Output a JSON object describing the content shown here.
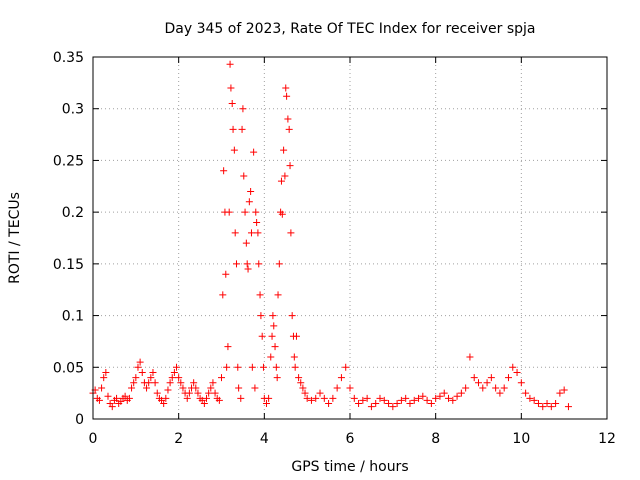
{
  "chart_data": {
    "type": "scatter",
    "title": "Day 345 of 2023, Rate Of TEC Index for receiver spja",
    "xlabel": "GPS time / hours",
    "ylabel": "ROTI / TECUs",
    "xlim": [
      0,
      12
    ],
    "ylim": [
      0,
      0.35
    ],
    "x_ticks": [
      0,
      2,
      4,
      6,
      8,
      10,
      12
    ],
    "x_tick_labels": [
      "0",
      "2",
      "4",
      "6",
      "8",
      "10",
      "12"
    ],
    "y_ticks": [
      0,
      0.05,
      0.1,
      0.15,
      0.2,
      0.25,
      0.3,
      0.35
    ],
    "y_tick_labels": [
      "0",
      "0.05",
      "0.1",
      "0.15",
      "0.2",
      "0.25",
      "0.3",
      "0.35"
    ],
    "grid": true,
    "marker": "+",
    "marker_color": "#ff0000",
    "series": [
      {
        "name": "spja",
        "points": [
          [
            0.0,
            0.025
          ],
          [
            0.05,
            0.028
          ],
          [
            0.1,
            0.02
          ],
          [
            0.15,
            0.018
          ],
          [
            0.2,
            0.03
          ],
          [
            0.25,
            0.04
          ],
          [
            0.3,
            0.045
          ],
          [
            0.35,
            0.022
          ],
          [
            0.4,
            0.015
          ],
          [
            0.45,
            0.012
          ],
          [
            0.5,
            0.018
          ],
          [
            0.55,
            0.02
          ],
          [
            0.6,
            0.015
          ],
          [
            0.65,
            0.017
          ],
          [
            0.7,
            0.02
          ],
          [
            0.75,
            0.022
          ],
          [
            0.8,
            0.018
          ],
          [
            0.85,
            0.02
          ],
          [
            0.9,
            0.03
          ],
          [
            0.95,
            0.035
          ],
          [
            1.0,
            0.04
          ],
          [
            1.05,
            0.05
          ],
          [
            1.1,
            0.055
          ],
          [
            1.15,
            0.045
          ],
          [
            1.2,
            0.035
          ],
          [
            1.25,
            0.03
          ],
          [
            1.3,
            0.035
          ],
          [
            1.35,
            0.04
          ],
          [
            1.4,
            0.045
          ],
          [
            1.45,
            0.035
          ],
          [
            1.5,
            0.025
          ],
          [
            1.55,
            0.02
          ],
          [
            1.6,
            0.018
          ],
          [
            1.65,
            0.015
          ],
          [
            1.7,
            0.02
          ],
          [
            1.75,
            0.028
          ],
          [
            1.8,
            0.035
          ],
          [
            1.85,
            0.04
          ],
          [
            1.9,
            0.045
          ],
          [
            1.95,
            0.05
          ],
          [
            2.0,
            0.04
          ],
          [
            2.05,
            0.035
          ],
          [
            2.1,
            0.03
          ],
          [
            2.15,
            0.025
          ],
          [
            2.2,
            0.02
          ],
          [
            2.25,
            0.025
          ],
          [
            2.3,
            0.03
          ],
          [
            2.35,
            0.035
          ],
          [
            2.4,
            0.03
          ],
          [
            2.45,
            0.025
          ],
          [
            2.5,
            0.02
          ],
          [
            2.55,
            0.018
          ],
          [
            2.6,
            0.015
          ],
          [
            2.65,
            0.02
          ],
          [
            2.7,
            0.025
          ],
          [
            2.75,
            0.03
          ],
          [
            2.8,
            0.035
          ],
          [
            2.85,
            0.025
          ],
          [
            2.9,
            0.02
          ],
          [
            2.95,
            0.018
          ],
          [
            3.0,
            0.04
          ],
          [
            3.03,
            0.12
          ],
          [
            3.05,
            0.24
          ],
          [
            3.08,
            0.2
          ],
          [
            3.1,
            0.14
          ],
          [
            3.12,
            0.05
          ],
          [
            3.15,
            0.07
          ],
          [
            3.18,
            0.2
          ],
          [
            3.2,
            0.343
          ],
          [
            3.22,
            0.32
          ],
          [
            3.25,
            0.305
          ],
          [
            3.27,
            0.28
          ],
          [
            3.3,
            0.26
          ],
          [
            3.32,
            0.18
          ],
          [
            3.35,
            0.15
          ],
          [
            3.38,
            0.05
          ],
          [
            3.4,
            0.03
          ],
          [
            3.45,
            0.02
          ],
          [
            3.48,
            0.28
          ],
          [
            3.5,
            0.3
          ],
          [
            3.52,
            0.235
          ],
          [
            3.55,
            0.2
          ],
          [
            3.58,
            0.17
          ],
          [
            3.6,
            0.15
          ],
          [
            3.62,
            0.145
          ],
          [
            3.65,
            0.21
          ],
          [
            3.68,
            0.22
          ],
          [
            3.7,
            0.18
          ],
          [
            3.72,
            0.05
          ],
          [
            3.75,
            0.258
          ],
          [
            3.78,
            0.03
          ],
          [
            3.8,
            0.2
          ],
          [
            3.82,
            0.19
          ],
          [
            3.85,
            0.18
          ],
          [
            3.87,
            0.15
          ],
          [
            3.9,
            0.12
          ],
          [
            3.92,
            0.1
          ],
          [
            3.95,
            0.08
          ],
          [
            3.98,
            0.05
          ],
          [
            4.0,
            0.02
          ],
          [
            4.05,
            0.015
          ],
          [
            4.1,
            0.02
          ],
          [
            4.15,
            0.06
          ],
          [
            4.18,
            0.08
          ],
          [
            4.2,
            0.1
          ],
          [
            4.22,
            0.09
          ],
          [
            4.25,
            0.07
          ],
          [
            4.28,
            0.05
          ],
          [
            4.3,
            0.04
          ],
          [
            4.32,
            0.12
          ],
          [
            4.35,
            0.15
          ],
          [
            4.38,
            0.2
          ],
          [
            4.4,
            0.23
          ],
          [
            4.42,
            0.198
          ],
          [
            4.45,
            0.26
          ],
          [
            4.48,
            0.235
          ],
          [
            4.5,
            0.32
          ],
          [
            4.52,
            0.312
          ],
          [
            4.55,
            0.29
          ],
          [
            4.58,
            0.28
          ],
          [
            4.6,
            0.245
          ],
          [
            4.62,
            0.18
          ],
          [
            4.65,
            0.1
          ],
          [
            4.68,
            0.08
          ],
          [
            4.7,
            0.06
          ],
          [
            4.72,
            0.05
          ],
          [
            4.75,
            0.08
          ],
          [
            4.8,
            0.04
          ],
          [
            4.85,
            0.035
          ],
          [
            4.9,
            0.03
          ],
          [
            4.95,
            0.025
          ],
          [
            5.0,
            0.02
          ],
          [
            5.1,
            0.018
          ],
          [
            5.2,
            0.02
          ],
          [
            5.3,
            0.025
          ],
          [
            5.4,
            0.02
          ],
          [
            5.5,
            0.015
          ],
          [
            5.6,
            0.02
          ],
          [
            5.7,
            0.03
          ],
          [
            5.8,
            0.04
          ],
          [
            5.9,
            0.05
          ],
          [
            6.0,
            0.03
          ],
          [
            6.1,
            0.02
          ],
          [
            6.2,
            0.015
          ],
          [
            6.3,
            0.018
          ],
          [
            6.4,
            0.02
          ],
          [
            6.5,
            0.012
          ],
          [
            6.6,
            0.015
          ],
          [
            6.7,
            0.02
          ],
          [
            6.8,
            0.018
          ],
          [
            6.9,
            0.015
          ],
          [
            7.0,
            0.012
          ],
          [
            7.1,
            0.015
          ],
          [
            7.2,
            0.018
          ],
          [
            7.3,
            0.02
          ],
          [
            7.4,
            0.015
          ],
          [
            7.5,
            0.018
          ],
          [
            7.6,
            0.02
          ],
          [
            7.7,
            0.022
          ],
          [
            7.8,
            0.018
          ],
          [
            7.9,
            0.015
          ],
          [
            8.0,
            0.02
          ],
          [
            8.1,
            0.022
          ],
          [
            8.2,
            0.025
          ],
          [
            8.3,
            0.02
          ],
          [
            8.4,
            0.018
          ],
          [
            8.5,
            0.022
          ],
          [
            8.6,
            0.025
          ],
          [
            8.7,
            0.03
          ],
          [
            8.8,
            0.06
          ],
          [
            8.9,
            0.04
          ],
          [
            9.0,
            0.035
          ],
          [
            9.1,
            0.03
          ],
          [
            9.2,
            0.035
          ],
          [
            9.3,
            0.04
          ],
          [
            9.4,
            0.03
          ],
          [
            9.5,
            0.025
          ],
          [
            9.6,
            0.03
          ],
          [
            9.7,
            0.04
          ],
          [
            9.8,
            0.05
          ],
          [
            9.9,
            0.045
          ],
          [
            10.0,
            0.035
          ],
          [
            10.1,
            0.025
          ],
          [
            10.2,
            0.02
          ],
          [
            10.3,
            0.018
          ],
          [
            10.4,
            0.015
          ],
          [
            10.5,
            0.012
          ],
          [
            10.6,
            0.015
          ],
          [
            10.7,
            0.012
          ],
          [
            10.8,
            0.015
          ],
          [
            10.9,
            0.025
          ],
          [
            11.0,
            0.028
          ],
          [
            11.1,
            0.012
          ]
        ]
      }
    ]
  }
}
